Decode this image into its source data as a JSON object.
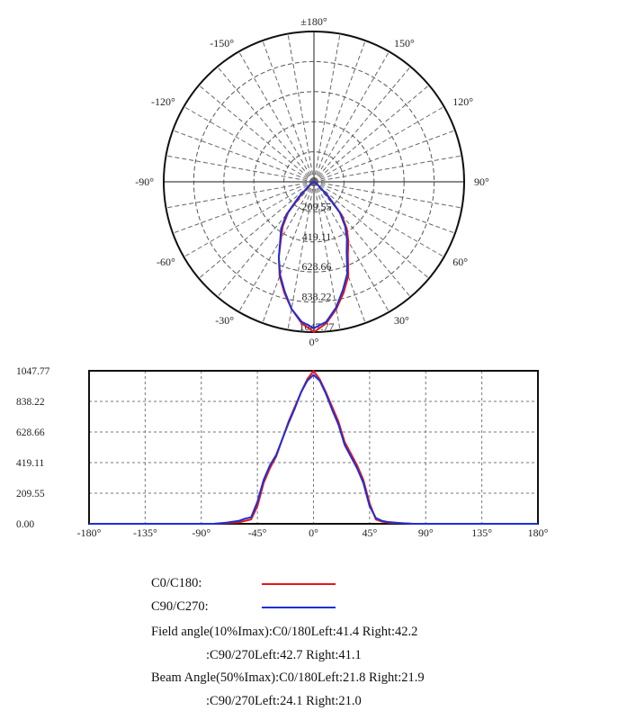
{
  "chart_data": [
    {
      "type": "polar",
      "angle_labels": [
        {
          "deg": 0,
          "text": "0°"
        },
        {
          "deg": 30,
          "text": "30°"
        },
        {
          "deg": 60,
          "text": "60°"
        },
        {
          "deg": 90,
          "text": "90°"
        },
        {
          "deg": 120,
          "text": "120°"
        },
        {
          "deg": 150,
          "text": "150°"
        },
        {
          "deg": 180,
          "text": "±180°"
        },
        {
          "deg": -150,
          "text": "-150°"
        },
        {
          "deg": -120,
          "text": "-120°"
        },
        {
          "deg": -90,
          "text": "-90°"
        },
        {
          "deg": -60,
          "text": "-60°"
        },
        {
          "deg": -30,
          "text": "-30°"
        }
      ],
      "radial_ticks": [
        209.55,
        419.11,
        628.66,
        838.22,
        1047.77
      ],
      "radial_tick_labels": [
        "209.55",
        "419.11",
        "628.66",
        "838.22",
        "1047.77"
      ],
      "rmax": 1047.77,
      "grid": true,
      "series": [
        {
          "name": "C0/C180",
          "color": "#e8151b",
          "angles": [
            -90,
            -80,
            -70,
            -60,
            -55,
            -50,
            -45,
            -40,
            -35,
            -30,
            -25,
            -20,
            -15,
            -10,
            -5,
            0,
            5,
            10,
            15,
            20,
            25,
            30,
            35,
            40,
            45,
            50,
            55,
            60,
            70,
            80,
            90
          ],
          "values": [
            0,
            0,
            5,
            10,
            20,
            30,
            120,
            280,
            380,
            460,
            580,
            700,
            800,
            900,
            990,
            1047,
            990,
            900,
            800,
            700,
            560,
            480,
            400,
            300,
            140,
            30,
            15,
            8,
            5,
            0,
            0
          ]
        },
        {
          "name": "C90/C270",
          "color": "#1f2fd6",
          "angles": [
            -90,
            -80,
            -70,
            -60,
            -55,
            -50,
            -45,
            -40,
            -35,
            -30,
            -25,
            -20,
            -15,
            -10,
            -5,
            0,
            5,
            10,
            15,
            20,
            25,
            30,
            35,
            40,
            45,
            50,
            55,
            60,
            70,
            80,
            90
          ],
          "values": [
            0,
            0,
            8,
            20,
            35,
            45,
            150,
            300,
            400,
            470,
            580,
            690,
            790,
            900,
            980,
            1020,
            980,
            890,
            780,
            680,
            540,
            460,
            380,
            280,
            120,
            40,
            20,
            12,
            5,
            0,
            0
          ]
        }
      ]
    },
    {
      "type": "line",
      "x_ticks": [
        -180,
        -135,
        -90,
        -45,
        0,
        45,
        90,
        135,
        180
      ],
      "x_tick_labels": [
        "-180°",
        "-135°",
        "-90°",
        "-45°",
        "0°",
        "45°",
        "90°",
        "135°",
        "180°"
      ],
      "xlim": [
        -180,
        180
      ],
      "y_ticks": [
        0,
        209.55,
        419.11,
        628.66,
        838.22,
        1047.77
      ],
      "y_tick_labels": [
        "0.00",
        "209.55",
        "419.11",
        "628.66",
        "838.22",
        "1047.77"
      ],
      "ylim": [
        0,
        1047.77
      ],
      "grid": true,
      "series": [
        {
          "name": "C0/C180",
          "color": "#e8151b",
          "x": [
            -180,
            -90,
            -80,
            -70,
            -60,
            -55,
            -50,
            -45,
            -40,
            -35,
            -30,
            -25,
            -20,
            -15,
            -10,
            -5,
            0,
            5,
            10,
            15,
            20,
            25,
            30,
            35,
            40,
            45,
            50,
            55,
            60,
            70,
            80,
            90,
            180
          ],
          "y": [
            0,
            0,
            0,
            5,
            10,
            20,
            30,
            120,
            280,
            380,
            460,
            580,
            700,
            800,
            900,
            990,
            1047,
            990,
            900,
            800,
            700,
            560,
            480,
            400,
            300,
            140,
            30,
            15,
            8,
            5,
            0,
            0,
            0
          ]
        },
        {
          "name": "C90/C270",
          "color": "#1f2fd6",
          "x": [
            -180,
            -90,
            -80,
            -70,
            -60,
            -55,
            -50,
            -45,
            -40,
            -35,
            -30,
            -25,
            -20,
            -15,
            -10,
            -5,
            0,
            5,
            10,
            15,
            20,
            25,
            30,
            35,
            40,
            45,
            50,
            55,
            60,
            70,
            80,
            90,
            180
          ],
          "y": [
            0,
            0,
            0,
            8,
            20,
            35,
            45,
            150,
            300,
            400,
            470,
            580,
            690,
            790,
            900,
            980,
            1020,
            980,
            890,
            780,
            680,
            540,
            460,
            380,
            280,
            120,
            40,
            20,
            12,
            5,
            0,
            0,
            0
          ]
        }
      ]
    }
  ],
  "legend": {
    "c0_label": "C0/C180:",
    "c90_label": "C90/C270:"
  },
  "notes": {
    "field_c0": "Field angle(10%Imax):C0/180Left:41.4 Right:42.2",
    "field_c90": ":C90/270Left:42.7 Right:41.1",
    "beam_c0": "Beam Angle(50%Imax):C0/180Left:21.8 Right:21.9",
    "beam_c90": ":C90/270Left:24.1 Right:21.0"
  }
}
